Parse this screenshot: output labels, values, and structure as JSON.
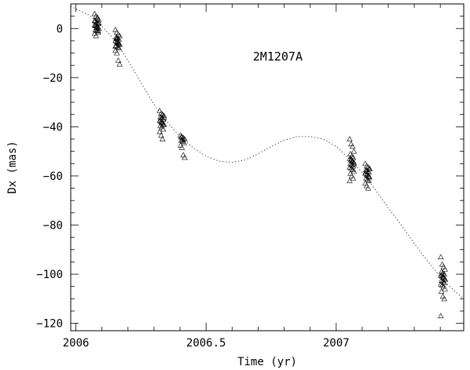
{
  "chart_data": {
    "type": "scatter",
    "xlabel": "Time (yr)",
    "ylabel": "Dx (mas)",
    "xlim": [
      2005.98,
      2007.49
    ],
    "ylim": [
      -123,
      10
    ],
    "xticks": {
      "major": [
        2006,
        2006.5,
        2007
      ],
      "major_labels": [
        "2006",
        "2006.5",
        "2007"
      ],
      "minor_step": 0.1
    },
    "yticks": {
      "major": [
        0,
        -20,
        -40,
        -60,
        -80,
        -100,
        -120
      ],
      "major_labels": [
        "0",
        "−20",
        "−40",
        "−60",
        "−80",
        "−100",
        "−120"
      ],
      "minor_step": 5
    },
    "annotations": [
      {
        "text": "2M1207A",
        "x": 2006.68,
        "y": -13
      }
    ],
    "series": [
      {
        "marker": "open-triangle",
        "color": "#000000",
        "epochs": [
          {
            "x": 2006.08,
            "y": [
              6,
              5,
              4,
              3.5,
              3,
              2.5,
              2,
              1.5,
              1,
              0.5,
              0,
              -0.5,
              -1,
              -1.5,
              -2,
              -3,
              4.5,
              2.2,
              1.2,
              0.2,
              -0.8,
              3.2,
              1.8,
              0.8
            ]
          },
          {
            "x": 2006.16,
            "y": [
              -0.5,
              -1.5,
              -2.5,
              -3,
              -3.5,
              -4,
              -4.5,
              -5,
              -5.5,
              -6,
              -6.5,
              -7,
              -7.5,
              -8,
              -9,
              -10,
              -13,
              -14.5,
              -4.2,
              -5.2,
              -6.2,
              -7.2,
              -3.8,
              -5.8
            ]
          },
          {
            "x": 2006.33,
            "y": [
              -33.5,
              -34.5,
              -35,
              -35.5,
              -36,
              -36.5,
              -37,
              -37.5,
              -38,
              -38.5,
              -39,
              -39.5,
              -40,
              -41,
              -42,
              -43.5,
              -45,
              -36.2,
              -37.2,
              -38.2,
              -39.2
            ]
          },
          {
            "x": 2006.41,
            "y": [
              -43.5,
              -44,
              -44.5,
              -45,
              -45.5,
              -46,
              -46.5,
              -47.5,
              -48.5,
              -51.5,
              -52.5,
              -44.2,
              -45.2
            ]
          },
          {
            "x": 2007.06,
            "y": [
              -45,
              -47,
              -48,
              -50,
              -51,
              -52,
              -52.5,
              -53,
              -53.5,
              -54,
              -54.5,
              -55,
              -55.5,
              -56,
              -56.5,
              -57,
              -57.5,
              -58,
              -59,
              -60,
              -61,
              -62,
              -53.2,
              -54.2,
              -55.2
            ]
          },
          {
            "x": 2007.12,
            "y": [
              -55,
              -56,
              -56.5,
              -57,
              -57.5,
              -58,
              -58.5,
              -59,
              -59.5,
              -60,
              -60.5,
              -61,
              -61.5,
              -62,
              -63,
              -64,
              -65,
              -57.2,
              -58.2,
              -59.2,
              -60.2
            ]
          },
          {
            "x": 2007.41,
            "y": [
              -93,
              -96,
              -97,
              -98,
              -99,
              -99.5,
              -100,
              -100.5,
              -101,
              -101.5,
              -102,
              -102.5,
              -103,
              -103.5,
              -104,
              -104.5,
              -105,
              -106,
              -107,
              -109,
              -110,
              -117,
              -100.2,
              -101.2,
              -102.2
            ]
          }
        ]
      },
      {
        "line_style": "dotted",
        "color": "#000000",
        "x": [
          2005.98,
          2006.0,
          2006.05,
          2006.1,
          2006.15,
          2006.2,
          2006.25,
          2006.3,
          2006.35,
          2006.4,
          2006.45,
          2006.5,
          2006.55,
          2006.6,
          2006.65,
          2006.7,
          2006.75,
          2006.8,
          2006.85,
          2006.9,
          2006.95,
          2007.0,
          2007.05,
          2007.1,
          2007.15,
          2007.2,
          2007.25,
          2007.3,
          2007.35,
          2007.4,
          2007.45,
          2007.49
        ],
        "y": [
          9,
          8,
          5.5,
          1,
          -5,
          -13,
          -22,
          -31,
          -38,
          -44,
          -48.5,
          -52,
          -54,
          -54.5,
          -53.5,
          -51,
          -48,
          -45.5,
          -44,
          -44,
          -45,
          -48,
          -53,
          -58.5,
          -65.5,
          -73,
          -80,
          -87.5,
          -94.5,
          -101,
          -106.5,
          -110
        ]
      }
    ]
  }
}
